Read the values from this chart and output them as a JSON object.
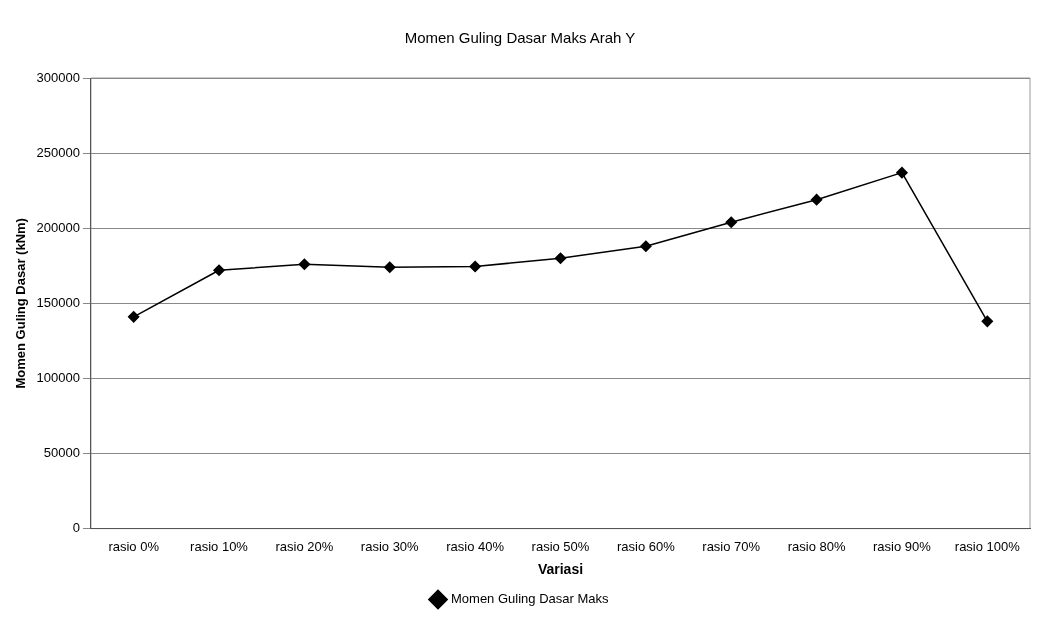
{
  "chart_data": {
    "type": "line",
    "title": "Momen Guling Dasar Maks Arah Y",
    "xlabel": "Variasi",
    "ylabel": "Momen Guling Dasar (kNm)",
    "categories": [
      "rasio 0%",
      "rasio 10%",
      "rasio 20%",
      "rasio 30%",
      "rasio 40%",
      "rasio 50%",
      "rasio 60%",
      "rasio 70%",
      "rasio 80%",
      "rasio 90%",
      "rasio 100%"
    ],
    "series": [
      {
        "name": "Momen Guling Dasar Maks",
        "color": "#000000",
        "values": [
          141000,
          172000,
          176000,
          174000,
          174500,
          180000,
          188000,
          204000,
          219000,
          237000,
          138000
        ]
      }
    ],
    "ylim": [
      0,
      300000
    ],
    "yticks": [
      0,
      50000,
      100000,
      150000,
      200000,
      250000,
      300000
    ],
    "grid": "y",
    "legend": "bottom",
    "marker": "diamond",
    "line_style": "solid"
  }
}
